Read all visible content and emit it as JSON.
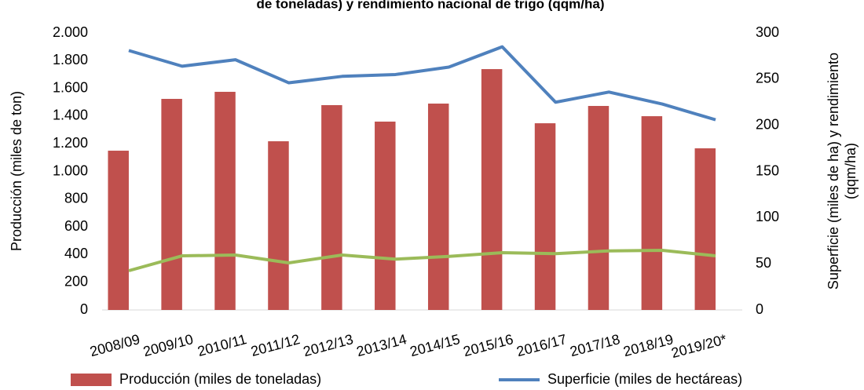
{
  "chart_data": {
    "type": "bar",
    "title": "de toneladas) y rendimiento nacional de trigo (qqm/ha)",
    "ylabel": "Producción (miles de ton)",
    "y2label": [
      "Superficie (miles de ha) y rendimiento",
      "(qqm/ha)"
    ],
    "categories": [
      "2008/09",
      "2009/10",
      "2010/11",
      "2011/12",
      "2012/13",
      "2013/14",
      "2014/15",
      "2015/16",
      "2016/17",
      "2017/18",
      "2018/19",
      "2019/20*"
    ],
    "series": [
      {
        "name": "Producción (miles de toneladas)",
        "type": "bar",
        "color": "#c0504d",
        "values": [
          1150,
          1524,
          1575,
          1218,
          1479,
          1360,
          1490,
          1739,
          1348,
          1473,
          1399,
          1167
        ]
      },
      {
        "name": "Superficie (miles de hectáreas)",
        "type": "line",
        "axis": "y2",
        "color": "#4f81bd",
        "values": [
          281,
          264,
          271,
          246,
          253,
          255,
          263,
          285,
          225,
          236,
          223,
          206
        ]
      },
      {
        "type": "line",
        "axis": "y2",
        "color": "#9bbb59",
        "values": [
          42.5,
          58.6,
          59.5,
          51,
          59.5,
          55,
          58,
          62,
          61,
          64,
          64.6,
          58.6
        ]
      }
    ],
    "ylim": [
      0,
      2000
    ],
    "yticks": [
      0,
      200,
      400,
      600,
      800,
      {
        "value": 1000,
        "label": "1.000"
      },
      {
        "value": 1200,
        "label": "1.200"
      },
      {
        "value": 1400,
        "label": "1.400"
      },
      {
        "value": 1600,
        "label": "1.600"
      },
      {
        "value": 1800,
        "label": "1.800"
      },
      {
        "value": 2000,
        "label": "2.000"
      }
    ],
    "y2lim": [
      0,
      300
    ],
    "y2ticks": [
      0,
      50,
      100,
      150,
      200,
      250,
      300
    ],
    "grid": false
  }
}
